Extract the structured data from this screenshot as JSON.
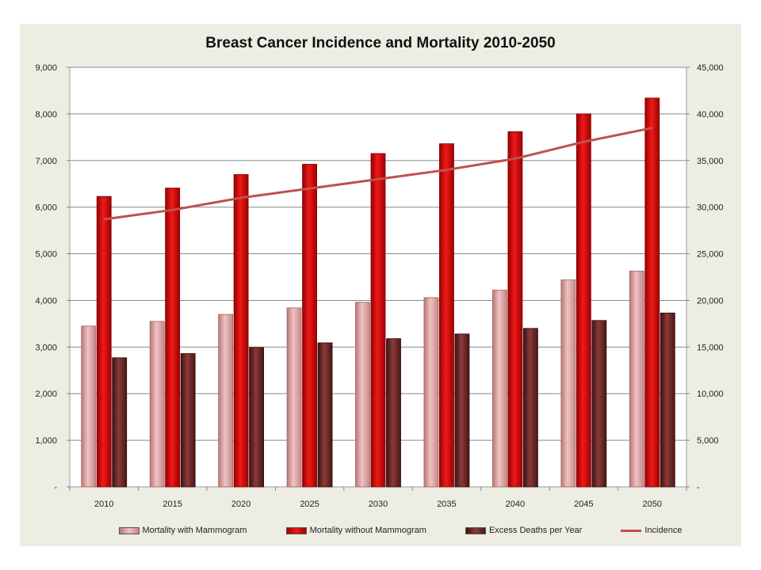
{
  "chart_data": {
    "type": "bar",
    "title": "Breast Cancer Incidence and Mortality 2010-2050",
    "categories": [
      "2010",
      "2015",
      "2020",
      "2025",
      "2030",
      "2035",
      "2040",
      "2045",
      "2050"
    ],
    "series": [
      {
        "name": "Mortality with Mammogram",
        "axis": "left",
        "kind": "bar",
        "color": "#d89a9a",
        "values": [
          3450,
          3550,
          3700,
          3840,
          3960,
          4060,
          4220,
          4440,
          4630
        ]
      },
      {
        "name": "Mortality without Mammogram",
        "axis": "left",
        "kind": "bar",
        "color": "#cc0000",
        "values": [
          6230,
          6410,
          6700,
          6920,
          7150,
          7360,
          7620,
          8000,
          8340
        ]
      },
      {
        "name": "Excess Deaths per Year",
        "axis": "left",
        "kind": "bar",
        "color": "#6b2424",
        "values": [
          2770,
          2860,
          2990,
          3090,
          3180,
          3280,
          3400,
          3570,
          3730
        ]
      },
      {
        "name": "Incidence",
        "axis": "right",
        "kind": "line",
        "color": "#c0504d",
        "values": [
          28700,
          29700,
          31000,
          32000,
          33000,
          34000,
          35200,
          37000,
          38500
        ]
      }
    ],
    "y_left": {
      "min": 0,
      "max": 9000,
      "step": 1000,
      "tick_labels": [
        "-",
        "1,000",
        "2,000",
        "3,000",
        "4,000",
        "5,000",
        "6,000",
        "7,000",
        "8,000",
        "9,000"
      ]
    },
    "y_right": {
      "min": 0,
      "max": 45000,
      "step": 5000,
      "tick_labels": [
        "-",
        "5,000",
        "10,000",
        "15,000",
        "20,000",
        "25,000",
        "30,000",
        "35,000",
        "40,000",
        "45,000"
      ]
    },
    "grid": true,
    "legend_position": "bottom"
  }
}
